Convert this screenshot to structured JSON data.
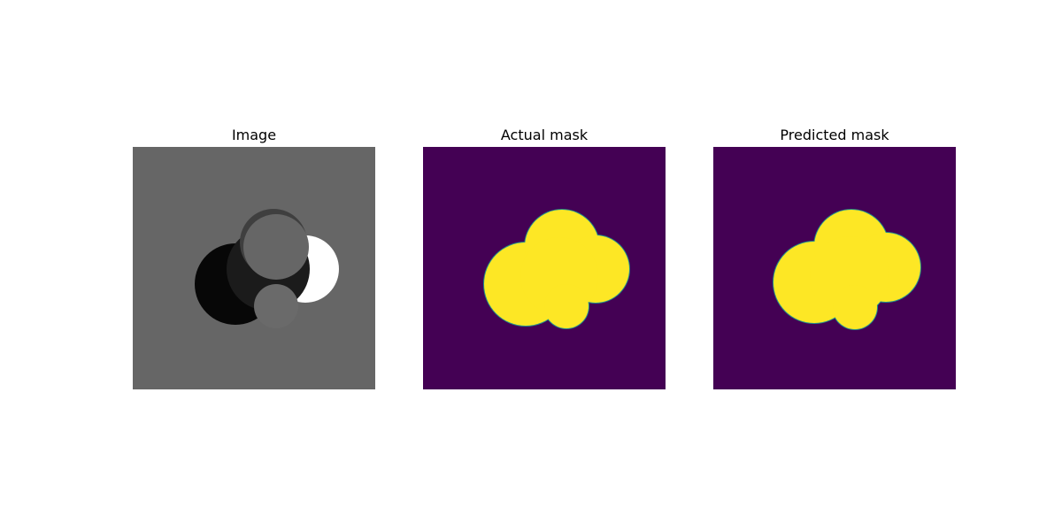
{
  "figure": {
    "panels": [
      {
        "title": "Image",
        "kind": "grayscale-image",
        "colors": {
          "background": "#666666",
          "left_dark_circle": "#070707",
          "mid_dark_circle": "#1b1b1b",
          "white_crescent": "#ffffff",
          "top_ring": "#3f3f3f",
          "top_inner_circle": "#666666",
          "bottom_small_circle": "#6a6a6a"
        }
      },
      {
        "title": "Actual mask",
        "kind": "mask",
        "colors": {
          "background": "#440154",
          "foreground": "#fde725",
          "edge": "#21918c"
        }
      },
      {
        "title": "Predicted mask",
        "kind": "mask",
        "colors": {
          "background": "#440154",
          "foreground": "#fde725",
          "edge": "#21918c"
        }
      }
    ]
  }
}
